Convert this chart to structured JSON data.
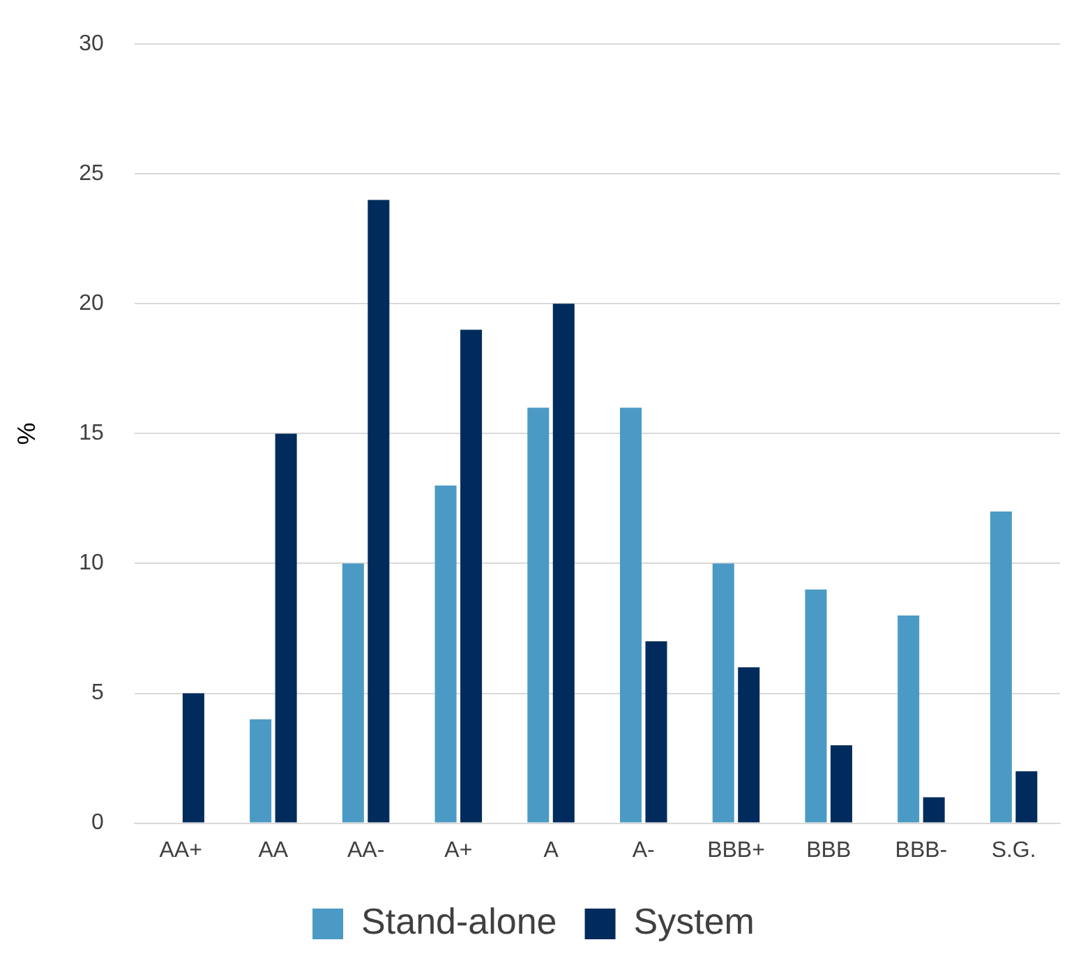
{
  "chart_data": {
    "type": "bar",
    "ylabel": "%",
    "categories": [
      "AA+",
      "AA",
      "AA-",
      "A+",
      "A",
      "A-",
      "BBB+",
      "BBB",
      "BBB-",
      "S.G."
    ],
    "series": [
      {
        "name": "Stand-alone",
        "color": "#4b9ac6",
        "values": [
          0,
          4,
          10,
          13,
          16,
          16,
          10,
          9,
          8,
          12
        ]
      },
      {
        "name": "System",
        "color": "#002b5c",
        "values": [
          5,
          15,
          24,
          19,
          20,
          7,
          6,
          3,
          1,
          2
        ]
      }
    ],
    "ylim": [
      0,
      30
    ],
    "yticks": [
      0,
      5,
      10,
      15,
      20,
      25,
      30
    ],
    "grid": "y",
    "legend": "bottom"
  }
}
